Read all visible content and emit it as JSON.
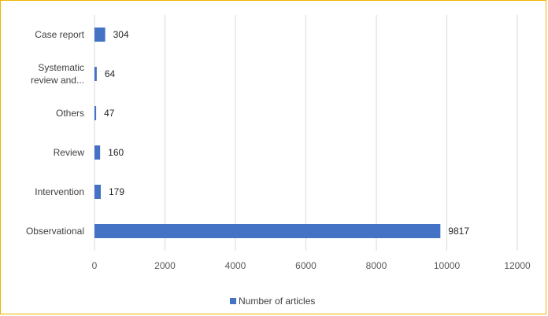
{
  "chart_data": {
    "type": "bar",
    "orientation": "horizontal",
    "categories": [
      [
        "Case report"
      ],
      [
        "Systematic",
        "review and..."
      ],
      [
        "Others"
      ],
      [
        "Review"
      ],
      [
        "Intervention"
      ],
      [
        "Observational"
      ]
    ],
    "series": [
      {
        "name": "Number of articles",
        "values": [
          304,
          64,
          47,
          160,
          179,
          9817
        ],
        "color": "#4472c4"
      }
    ],
    "xlim": [
      0,
      12000
    ],
    "xticks": [
      0,
      2000,
      4000,
      6000,
      8000,
      10000,
      12000
    ],
    "grid": true,
    "legend_position": "bottom",
    "border_color": "#f0b400"
  }
}
